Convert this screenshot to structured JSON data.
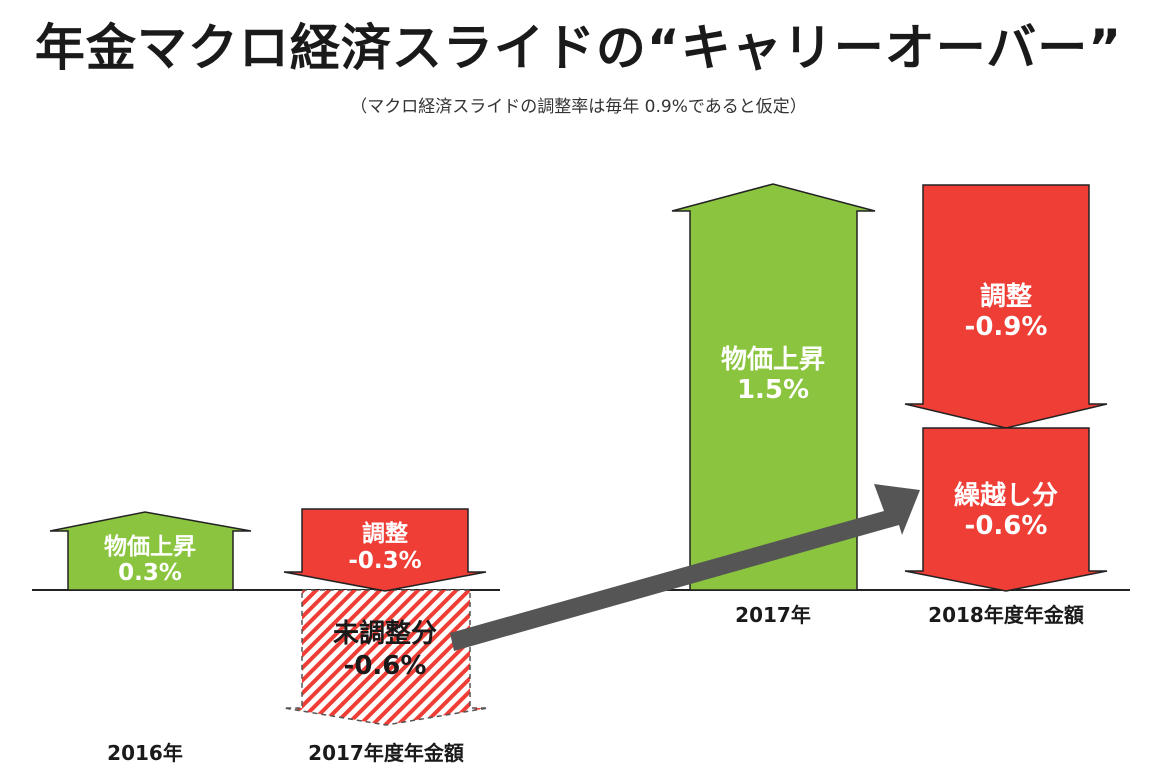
{
  "title": "年金マクロ経済スライドの“キャリーオーバー”",
  "subtitle": "（マクロ経済スライドの調整率は毎年 0.9%であると仮定）",
  "colors": {
    "green": "#8bc53f",
    "red": "#ef3e36",
    "arrow": "#555555",
    "stroke": "#222222"
  },
  "left_panel": {
    "price_rise": {
      "label": "物価上昇",
      "value": "0.3%"
    },
    "adjustment": {
      "label": "調整",
      "value": "-0.3%"
    },
    "unadjusted": {
      "label": "未調整分",
      "value": "-0.6%"
    },
    "x_label_1": "2016年",
    "x_label_2": "2017年度年金額"
  },
  "right_panel": {
    "price_rise": {
      "label": "物価上昇",
      "value": "1.5%"
    },
    "adjustment": {
      "label": "調整",
      "value": "-0.9%"
    },
    "carryover": {
      "label": "繰越し分",
      "value": "-0.6%"
    },
    "x_label_1": "2017年",
    "x_label_2": "2018年度年金額"
  }
}
